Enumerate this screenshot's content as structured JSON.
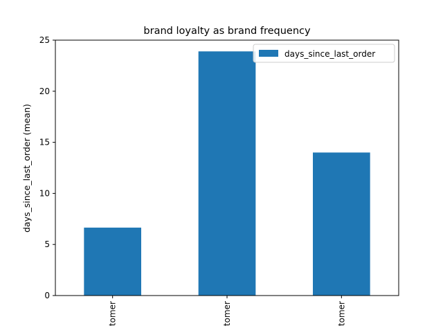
{
  "chart_data": {
    "type": "bar",
    "title": "brand loyalty as brand frequency",
    "xlabel": "",
    "ylabel": "days_since_last_order (mean)",
    "categories": [
      "tomer",
      "tomer",
      "tomer"
    ],
    "series": [
      {
        "name": "days_since_last_order",
        "values": [
          6.65,
          23.9,
          14.0
        ],
        "color": "#1f77b4"
      }
    ],
    "ylim": [
      0,
      25
    ],
    "yticks": [
      0,
      5,
      10,
      15,
      20,
      25
    ],
    "grid": false,
    "legend": "top-right"
  }
}
